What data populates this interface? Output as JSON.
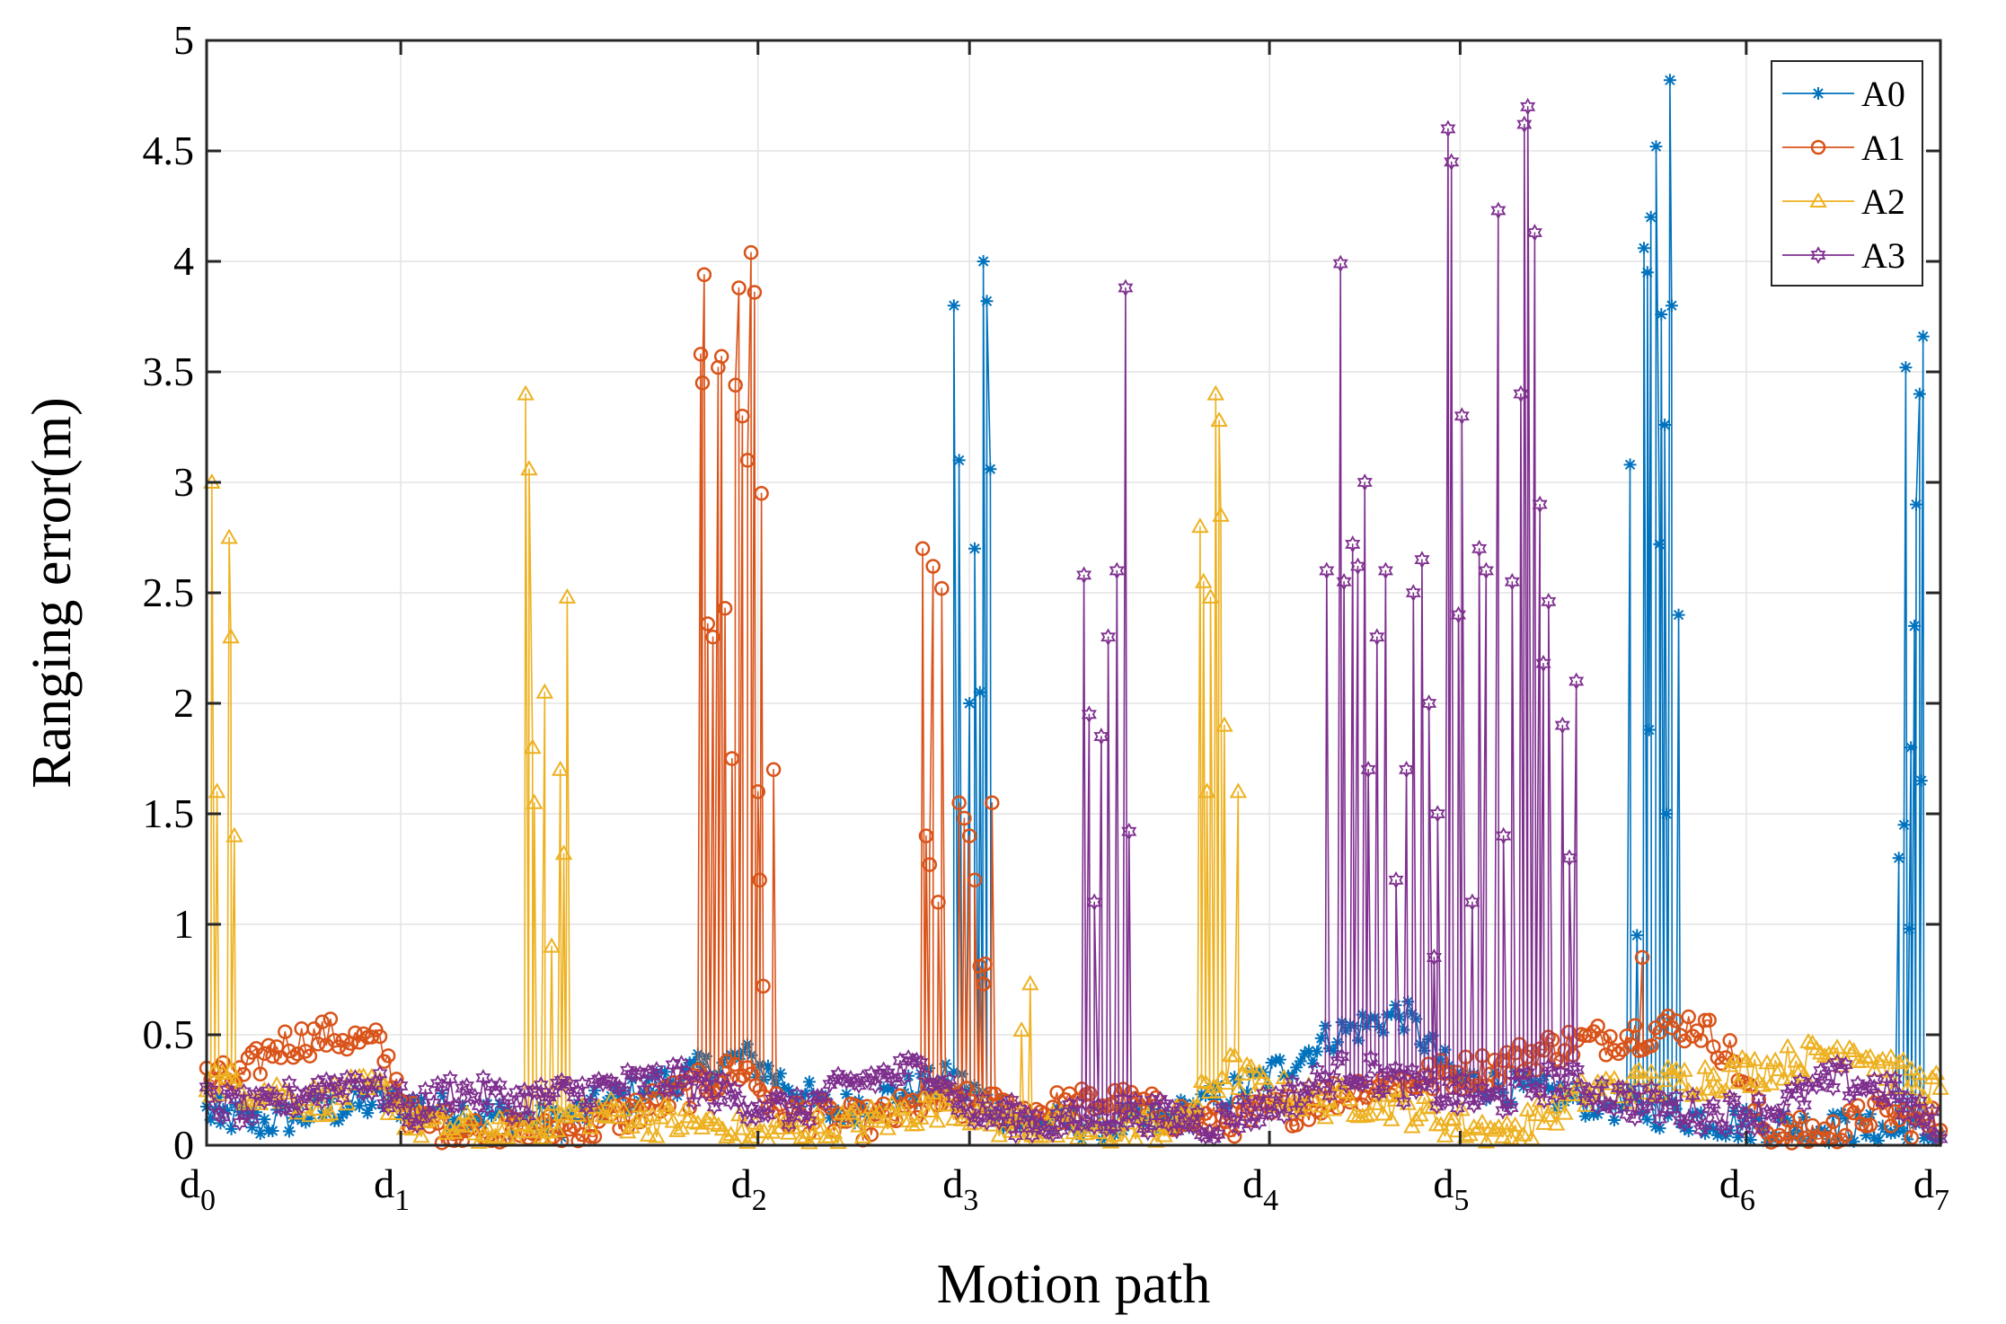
{
  "chart_data": {
    "type": "line",
    "title": "",
    "xlabel": "Motion path",
    "ylabel": "Ranging error(m)",
    "ylim": [
      0,
      5
    ],
    "yticks": [
      0,
      0.5,
      1,
      1.5,
      2,
      2.5,
      3,
      3.5,
      4,
      4.5,
      5
    ],
    "ytick_labels": [
      "0",
      "0.5",
      "1",
      "1.5",
      "2",
      "2.5",
      "3",
      "3.5",
      "4",
      "4.5",
      "5"
    ],
    "xlim": [
      0,
      100
    ],
    "xticks": [
      {
        "pos": 0,
        "base": "d",
        "sub": "0"
      },
      {
        "pos": 11.2,
        "base": "d",
        "sub": "1"
      },
      {
        "pos": 31.8,
        "base": "d",
        "sub": "2"
      },
      {
        "pos": 44.0,
        "base": "d",
        "sub": "3"
      },
      {
        "pos": 61.3,
        "base": "d",
        "sub": "4"
      },
      {
        "pos": 72.3,
        "base": "d",
        "sub": "5"
      },
      {
        "pos": 88.8,
        "base": "d",
        "sub": "6"
      },
      {
        "pos": 100,
        "base": "d",
        "sub": "7"
      }
    ],
    "grid": true,
    "legend_position": "top-right",
    "series": [
      {
        "name": "A0",
        "color": "#0072BD",
        "marker": "asterisk",
        "baseline": [
          [
            0,
            0.15
          ],
          [
            3,
            0.1
          ],
          [
            10,
            0.2
          ],
          [
            20,
            0.1
          ],
          [
            27,
            0.3
          ],
          [
            31,
            0.4
          ],
          [
            36,
            0.15
          ],
          [
            43,
            0.3
          ],
          [
            47,
            0.1
          ],
          [
            55,
            0.1
          ],
          [
            61,
            0.3
          ],
          [
            65,
            0.5
          ],
          [
            69,
            0.6
          ],
          [
            72,
            0.3
          ],
          [
            76,
            0.25
          ],
          [
            80,
            0.2
          ],
          [
            88,
            0.1
          ],
          [
            100,
            0.05
          ]
        ],
        "spikes": [
          [
            0.8,
            0.1
          ],
          [
            43.1,
            3.8
          ],
          [
            43.4,
            3.1
          ],
          [
            44.3,
            2.7
          ],
          [
            44.8,
            4.0
          ],
          [
            45.0,
            3.82
          ],
          [
            45.2,
            3.06
          ],
          [
            44.0,
            2.0
          ],
          [
            44.6,
            2.05
          ],
          [
            82.1,
            3.08
          ],
          [
            82.5,
            0.95
          ],
          [
            82.9,
            4.06
          ],
          [
            83.1,
            3.95
          ],
          [
            83.3,
            4.2
          ],
          [
            83.6,
            4.52
          ],
          [
            83.9,
            3.76
          ],
          [
            84.1,
            3.26
          ],
          [
            84.4,
            4.82
          ],
          [
            84.5,
            3.8
          ],
          [
            84.9,
            2.4
          ],
          [
            83.8,
            2.72
          ],
          [
            84.2,
            1.5
          ],
          [
            83.2,
            1.88
          ],
          [
            97.6,
            1.3
          ],
          [
            98.0,
            3.52
          ],
          [
            98.3,
            1.8
          ],
          [
            98.6,
            2.9
          ],
          [
            99.0,
            3.66
          ],
          [
            98.8,
            3.4
          ],
          [
            98.2,
            0.98
          ],
          [
            98.9,
            1.65
          ],
          [
            98.5,
            2.35
          ],
          [
            97.9,
            1.45
          ]
        ]
      },
      {
        "name": "A1",
        "color": "#D95319",
        "marker": "circle",
        "baseline": [
          [
            0,
            0.3
          ],
          [
            2,
            0.3
          ],
          [
            4,
            0.45
          ],
          [
            7,
            0.5
          ],
          [
            10,
            0.45
          ],
          [
            12,
            0.1
          ],
          [
            17,
            0.05
          ],
          [
            22,
            0.08
          ],
          [
            28,
            0.25
          ],
          [
            31,
            0.35
          ],
          [
            33,
            0.15
          ],
          [
            38,
            0.1
          ],
          [
            42,
            0.2
          ],
          [
            47,
            0.15
          ],
          [
            52,
            0.2
          ],
          [
            58,
            0.1
          ],
          [
            62,
            0.15
          ],
          [
            66,
            0.25
          ],
          [
            70,
            0.3
          ],
          [
            74,
            0.35
          ],
          [
            78,
            0.45
          ],
          [
            82,
            0.5
          ],
          [
            86,
            0.55
          ],
          [
            88,
            0.4
          ],
          [
            90,
            0.05
          ],
          [
            94,
            0.05
          ],
          [
            96,
            0.15
          ],
          [
            99,
            0.1
          ]
        ],
        "spikes": [
          [
            28.5,
            3.58
          ],
          [
            28.7,
            3.94
          ],
          [
            28.6,
            3.45
          ],
          [
            28.9,
            2.36
          ],
          [
            29.2,
            2.3
          ],
          [
            29.5,
            3.52
          ],
          [
            29.7,
            3.57
          ],
          [
            29.9,
            2.43
          ],
          [
            30.3,
            1.75
          ],
          [
            30.5,
            3.44
          ],
          [
            30.7,
            3.88
          ],
          [
            30.9,
            3.3
          ],
          [
            31.2,
            3.1
          ],
          [
            31.4,
            4.04
          ],
          [
            31.6,
            3.86
          ],
          [
            31.8,
            1.6
          ],
          [
            32.0,
            2.95
          ],
          [
            32.1,
            0.72
          ],
          [
            31.9,
            1.2
          ],
          [
            32.7,
            1.7
          ],
          [
            41.3,
            2.7
          ],
          [
            41.5,
            1.4
          ],
          [
            41.7,
            1.27
          ],
          [
            41.9,
            2.62
          ],
          [
            42.2,
            1.1
          ],
          [
            42.4,
            2.52
          ],
          [
            43.4,
            1.55
          ],
          [
            43.7,
            1.48
          ],
          [
            44.0,
            1.4
          ],
          [
            44.3,
            1.2
          ],
          [
            45.3,
            1.55
          ],
          [
            44.6,
            0.81
          ],
          [
            44.8,
            0.73
          ],
          [
            44.9,
            0.82
          ],
          [
            82.8,
            0.85
          ]
        ]
      },
      {
        "name": "A2",
        "color": "#EDB120",
        "marker": "triangle",
        "baseline": [
          [
            0,
            0.3
          ],
          [
            3,
            0.25
          ],
          [
            6,
            0.2
          ],
          [
            10,
            0.25
          ],
          [
            12,
            0.1
          ],
          [
            17,
            0.05
          ],
          [
            22,
            0.15
          ],
          [
            28,
            0.1
          ],
          [
            32,
            0.05
          ],
          [
            38,
            0.1
          ],
          [
            43,
            0.2
          ],
          [
            46,
            0.1
          ],
          [
            52,
            0.05
          ],
          [
            56,
            0.1
          ],
          [
            59,
            0.35
          ],
          [
            61,
            0.25
          ],
          [
            64,
            0.2
          ],
          [
            68,
            0.2
          ],
          [
            72,
            0.1
          ],
          [
            75,
            0.05
          ],
          [
            80,
            0.25
          ],
          [
            86,
            0.3
          ],
          [
            90,
            0.35
          ],
          [
            95,
            0.45
          ],
          [
            98,
            0.3
          ],
          [
            100,
            0.25
          ]
        ],
        "spikes": [
          [
            0.3,
            3.0
          ],
          [
            0.6,
            1.6
          ],
          [
            1.3,
            2.75
          ],
          [
            1.6,
            1.4
          ],
          [
            1.4,
            2.3
          ],
          [
            18.4,
            3.4
          ],
          [
            18.6,
            3.06
          ],
          [
            18.8,
            1.8
          ],
          [
            19.5,
            2.05
          ],
          [
            20.4,
            1.7
          ],
          [
            20.8,
            2.48
          ],
          [
            20.6,
            1.32
          ],
          [
            19.9,
            0.9
          ],
          [
            18.9,
            1.55
          ],
          [
            57.3,
            2.8
          ],
          [
            57.5,
            2.55
          ],
          [
            57.9,
            2.48
          ],
          [
            58.2,
            3.4
          ],
          [
            58.4,
            3.28
          ],
          [
            58.5,
            2.85
          ],
          [
            57.7,
            1.6
          ],
          [
            58.7,
            1.9
          ],
          [
            59.5,
            1.6
          ],
          [
            47.5,
            0.73
          ],
          [
            47.0,
            0.52
          ]
        ]
      },
      {
        "name": "A3",
        "color": "#7E2F8E",
        "marker": "hexagram",
        "baseline": [
          [
            0,
            0.2
          ],
          [
            3,
            0.15
          ],
          [
            6,
            0.25
          ],
          [
            9,
            0.3
          ],
          [
            12,
            0.15
          ],
          [
            14,
            0.25
          ],
          [
            18,
            0.2
          ],
          [
            22,
            0.25
          ],
          [
            27,
            0.3
          ],
          [
            31,
            0.2
          ],
          [
            34,
            0.15
          ],
          [
            38,
            0.3
          ],
          [
            42,
            0.35
          ],
          [
            44,
            0.15
          ],
          [
            49,
            0.1
          ],
          [
            53,
            0.15
          ],
          [
            58,
            0.1
          ],
          [
            62,
            0.2
          ],
          [
            66,
            0.35
          ],
          [
            70,
            0.25
          ],
          [
            74,
            0.2
          ],
          [
            78,
            0.3
          ],
          [
            82,
            0.2
          ],
          [
            86,
            0.15
          ],
          [
            90,
            0.15
          ],
          [
            94,
            0.3
          ],
          [
            97,
            0.25
          ],
          [
            100,
            0.05
          ]
        ],
        "spikes": [
          [
            50.6,
            2.58
          ],
          [
            50.9,
            1.95
          ],
          [
            51.2,
            1.1
          ],
          [
            52.5,
            2.6
          ],
          [
            53.0,
            3.88
          ],
          [
            53.2,
            1.42
          ],
          [
            51.6,
            1.85
          ],
          [
            52.0,
            2.3
          ],
          [
            64.6,
            2.6
          ],
          [
            65.4,
            3.99
          ],
          [
            65.6,
            2.55
          ],
          [
            66.1,
            2.72
          ],
          [
            66.4,
            2.62
          ],
          [
            67.0,
            1.7
          ],
          [
            67.5,
            2.3
          ],
          [
            68.0,
            2.6
          ],
          [
            69.2,
            1.7
          ],
          [
            69.6,
            2.5
          ],
          [
            70.1,
            2.65
          ],
          [
            70.5,
            2.0
          ],
          [
            71.0,
            1.5
          ],
          [
            71.6,
            4.6
          ],
          [
            71.8,
            4.45
          ],
          [
            72.2,
            2.4
          ],
          [
            72.4,
            3.3
          ],
          [
            73.0,
            1.1
          ],
          [
            73.8,
            2.6
          ],
          [
            74.5,
            4.23
          ],
          [
            74.8,
            1.4
          ],
          [
            75.3,
            2.55
          ],
          [
            75.8,
            3.4
          ],
          [
            76.0,
            4.62
          ],
          [
            76.2,
            4.7
          ],
          [
            76.6,
            4.13
          ],
          [
            76.9,
            2.9
          ],
          [
            77.4,
            2.46
          ],
          [
            77.1,
            2.18
          ],
          [
            78.6,
            1.3
          ],
          [
            78.2,
            1.9
          ],
          [
            79.0,
            2.1
          ],
          [
            66.8,
            3.0
          ],
          [
            68.6,
            1.2
          ],
          [
            73.4,
            2.7
          ],
          [
            70.8,
            0.85
          ]
        ]
      }
    ]
  }
}
